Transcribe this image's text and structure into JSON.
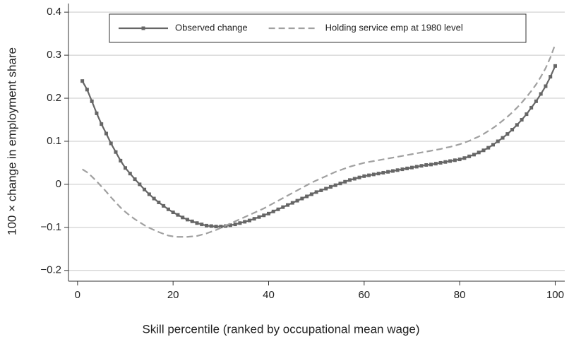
{
  "chart_data": {
    "type": "line",
    "xlabel": "Skill percentile (ranked by occupational mean wage)",
    "ylabel": "100 × change in employment share",
    "x": [
      1,
      2,
      3,
      4,
      5,
      6,
      7,
      8,
      9,
      10,
      11,
      12,
      13,
      14,
      15,
      16,
      17,
      18,
      19,
      20,
      21,
      22,
      23,
      24,
      25,
      26,
      27,
      28,
      29,
      30,
      31,
      32,
      33,
      34,
      35,
      36,
      37,
      38,
      39,
      40,
      41,
      42,
      43,
      44,
      45,
      46,
      47,
      48,
      49,
      50,
      51,
      52,
      53,
      54,
      55,
      56,
      57,
      58,
      59,
      60,
      61,
      62,
      63,
      64,
      65,
      66,
      67,
      68,
      69,
      70,
      71,
      72,
      73,
      74,
      75,
      76,
      77,
      78,
      79,
      80,
      81,
      82,
      83,
      84,
      85,
      86,
      87,
      88,
      89,
      90,
      91,
      92,
      93,
      94,
      95,
      96,
      97,
      98,
      99,
      100
    ],
    "series": [
      {
        "name": "Observed change",
        "color": "#666666",
        "dash": false,
        "markers": true,
        "values": [
          0.24,
          0.22,
          0.193,
          0.165,
          0.14,
          0.118,
          0.095,
          0.075,
          0.055,
          0.038,
          0.025,
          0.012,
          0.0,
          -0.012,
          -0.023,
          -0.033,
          -0.042,
          -0.05,
          -0.058,
          -0.065,
          -0.071,
          -0.077,
          -0.082,
          -0.086,
          -0.09,
          -0.093,
          -0.096,
          -0.097,
          -0.098,
          -0.098,
          -0.097,
          -0.095,
          -0.093,
          -0.09,
          -0.087,
          -0.084,
          -0.08,
          -0.076,
          -0.072,
          -0.068,
          -0.063,
          -0.058,
          -0.053,
          -0.048,
          -0.043,
          -0.038,
          -0.033,
          -0.028,
          -0.023,
          -0.018,
          -0.014,
          -0.01,
          -0.006,
          -0.002,
          0.002,
          0.006,
          0.01,
          0.013,
          0.016,
          0.019,
          0.021,
          0.023,
          0.025,
          0.027,
          0.029,
          0.031,
          0.033,
          0.035,
          0.037,
          0.039,
          0.041,
          0.043,
          0.045,
          0.046,
          0.048,
          0.05,
          0.052,
          0.054,
          0.056,
          0.058,
          0.061,
          0.065,
          0.069,
          0.074,
          0.079,
          0.085,
          0.092,
          0.1,
          0.108,
          0.117,
          0.127,
          0.138,
          0.15,
          0.163,
          0.178,
          0.193,
          0.21,
          0.228,
          0.25,
          0.275
        ]
      },
      {
        "name": "Holding service emp at 1980 level",
        "color": "#a0a0a0",
        "dash": true,
        "markers": false,
        "values": [
          0.035,
          0.028,
          0.018,
          0.007,
          -0.005,
          -0.017,
          -0.03,
          -0.042,
          -0.054,
          -0.064,
          -0.073,
          -0.081,
          -0.088,
          -0.095,
          -0.101,
          -0.106,
          -0.111,
          -0.115,
          -0.119,
          -0.121,
          -0.122,
          -0.122,
          -0.122,
          -0.121,
          -0.12,
          -0.117,
          -0.114,
          -0.11,
          -0.106,
          -0.101,
          -0.096,
          -0.091,
          -0.086,
          -0.081,
          -0.076,
          -0.071,
          -0.066,
          -0.061,
          -0.056,
          -0.05,
          -0.044,
          -0.038,
          -0.032,
          -0.026,
          -0.02,
          -0.014,
          -0.008,
          -0.002,
          0.004,
          0.009,
          0.014,
          0.019,
          0.024,
          0.029,
          0.033,
          0.037,
          0.041,
          0.044,
          0.047,
          0.05,
          0.052,
          0.054,
          0.056,
          0.058,
          0.06,
          0.062,
          0.064,
          0.066,
          0.068,
          0.07,
          0.072,
          0.074,
          0.076,
          0.078,
          0.08,
          0.082,
          0.085,
          0.087,
          0.09,
          0.093,
          0.097,
          0.101,
          0.106,
          0.111,
          0.117,
          0.124,
          0.131,
          0.139,
          0.148,
          0.157,
          0.167,
          0.178,
          0.19,
          0.203,
          0.217,
          0.232,
          0.25,
          0.27,
          0.295,
          0.325
        ]
      }
    ],
    "xlim": [
      -1.9,
      102
    ],
    "ylim": [
      -0.225,
      0.42
    ],
    "xticks": [
      0,
      20,
      40,
      60,
      80,
      100
    ],
    "yticks": [
      {
        "value": -0.2,
        "label": "−0.2"
      },
      {
        "value": -0.1,
        "label": "−0.1"
      },
      0,
      0.1,
      0.2,
      0.3,
      0.4
    ],
    "grid": true,
    "legend": "top"
  }
}
